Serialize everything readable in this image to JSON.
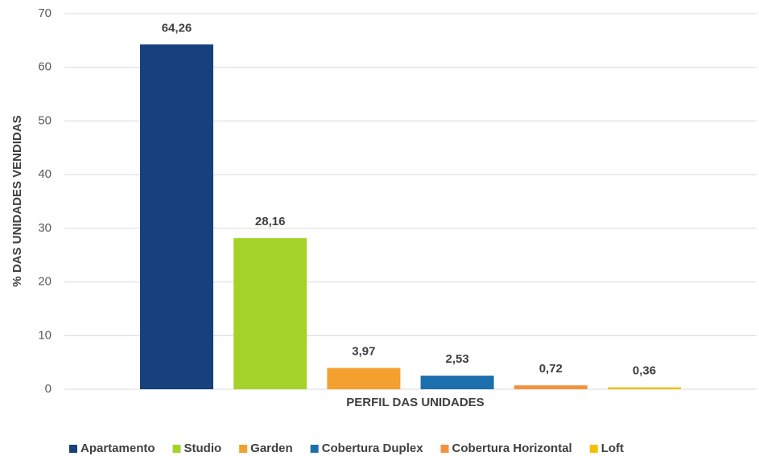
{
  "chart_data": {
    "type": "bar",
    "xlabel": "PERFIL DAS UNIDADES",
    "ylabel": "% DAS UNIDADES VENDIDAS",
    "categories": [
      null
    ],
    "series": [
      {
        "name": "Apartamento",
        "color": "#17407f",
        "values": [
          64.26
        ],
        "value_labels": [
          "64,26"
        ]
      },
      {
        "name": "Studio",
        "color": "#a4d22a",
        "values": [
          28.16
        ],
        "value_labels": [
          "28,16"
        ]
      },
      {
        "name": "Garden",
        "color": "#f4a02f",
        "values": [
          3.97
        ],
        "value_labels": [
          "3,97"
        ]
      },
      {
        "name": "Cobertura Duplex",
        "color": "#1b6fad",
        "values": [
          2.53
        ],
        "value_labels": [
          "2,53"
        ]
      },
      {
        "name": "Cobertura Horizontal",
        "color": "#f3913c",
        "values": [
          0.72
        ],
        "value_labels": [
          "0,72"
        ]
      },
      {
        "name": "Loft",
        "color": "#f6c000",
        "values": [
          0.36
        ],
        "value_labels": [
          "0,36"
        ]
      }
    ],
    "ylim": [
      0,
      70
    ],
    "yticks": [
      0,
      10,
      20,
      30,
      40,
      50,
      60,
      70
    ],
    "grid": true,
    "legend": "bottom"
  }
}
